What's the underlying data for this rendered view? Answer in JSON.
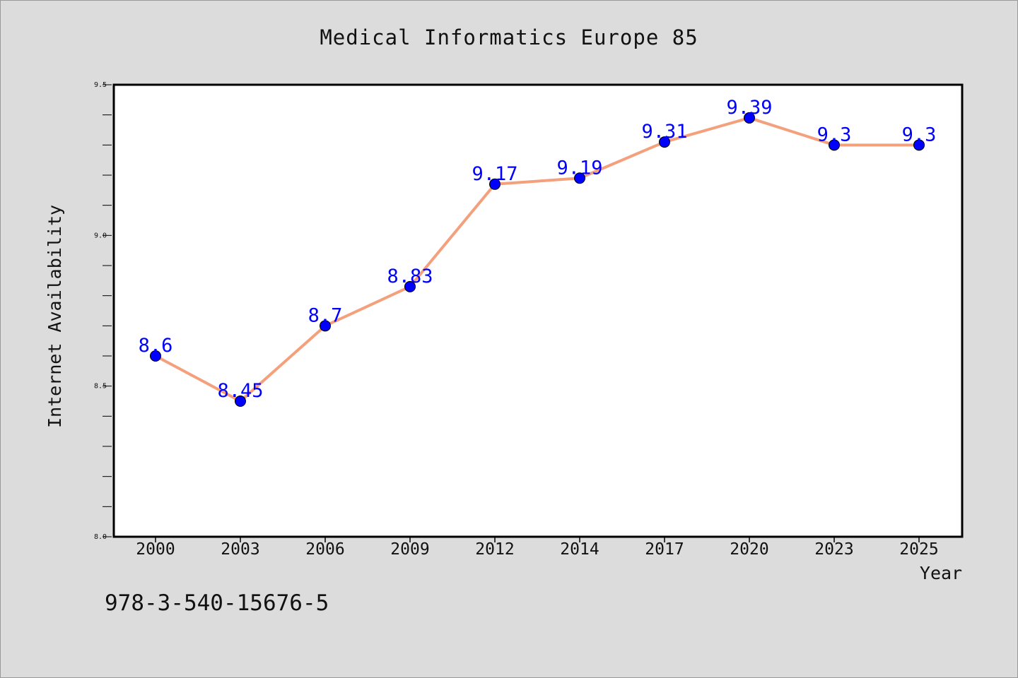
{
  "chart_data": {
    "type": "line",
    "title": "Medical Informatics Europe 85",
    "xlabel": "Year",
    "ylabel": "Internet Availability",
    "categories": [
      "2000",
      "2003",
      "2006",
      "2009",
      "2012",
      "2014",
      "2017",
      "2020",
      "2023",
      "2025"
    ],
    "series": [
      {
        "values": [
          8.6,
          8.45,
          8.7,
          8.83,
          9.17,
          9.19,
          9.31,
          9.39,
          9.3,
          9.3
        ],
        "data_labels": [
          "8.6",
          "8.45",
          "8.7",
          "8.83",
          "9.17",
          "9.19",
          "9.31",
          "9.39",
          "9.3",
          "9.3"
        ],
        "line_color": "#f4a07c",
        "marker_color": "#0000ff"
      }
    ],
    "ylim": [
      8.0,
      9.5
    ],
    "yticks": [
      8.0,
      8.5,
      9.0,
      9.5
    ],
    "ytick_labels": [
      "8.0",
      "8.5",
      "9.0",
      "9.5"
    ],
    "grid": false,
    "legend": "none",
    "background_color": "#dcdcdc",
    "plot_background_color": "#ffffff"
  },
  "footnote": "978-3-540-15676-5"
}
